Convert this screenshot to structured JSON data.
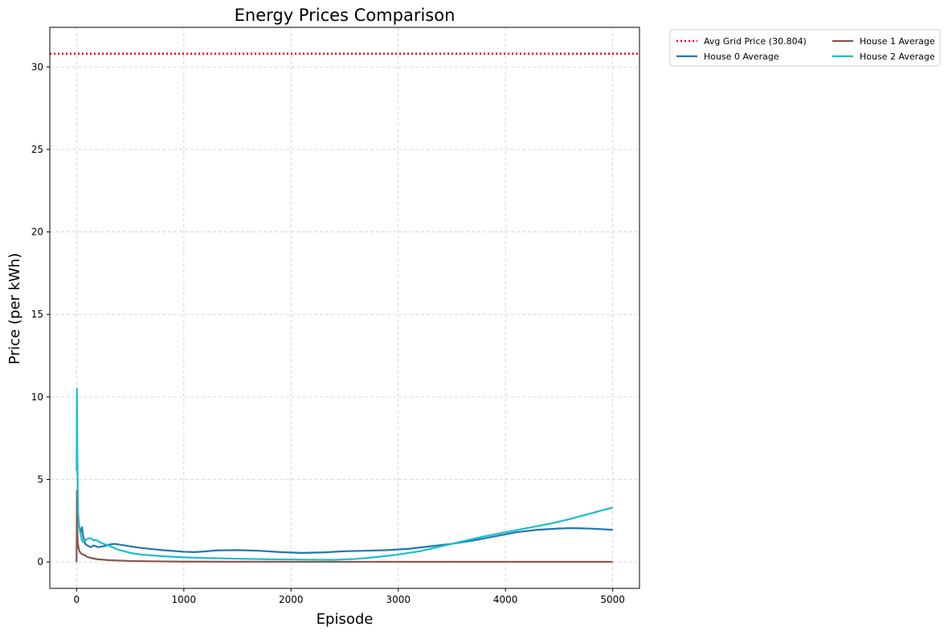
{
  "chart_data": {
    "type": "line",
    "title": "Energy Prices Comparison",
    "xlabel": "Episode",
    "ylabel": "Price (per kWh)",
    "xlim": [
      -250,
      5250
    ],
    "ylim": [
      -1.6,
      32.4
    ],
    "xticks": [
      0,
      1000,
      2000,
      3000,
      4000,
      5000
    ],
    "yticks": [
      0,
      5,
      10,
      15,
      20,
      25,
      30
    ],
    "grid": true,
    "legend_position": "outside top-right",
    "hline": {
      "name": "Avg Grid Price (30.804)",
      "value": 30.804,
      "color": "#ee0000",
      "style": "dotted"
    },
    "series": [
      {
        "name": "House 0 Average",
        "color": "#1f77b4",
        "x": [
          0,
          5,
          10,
          20,
          30,
          40,
          50,
          60,
          80,
          100,
          130,
          160,
          200,
          250,
          300,
          350,
          400,
          500,
          600,
          800,
          1000,
          1100,
          1200,
          1300,
          1500,
          1700,
          1900,
          2100,
          2300,
          2500,
          2700,
          2900,
          3100,
          3300,
          3500,
          3700,
          3900,
          4100,
          4300,
          4500,
          4600,
          4700,
          4800,
          5000
        ],
        "y": [
          0.0,
          3.6,
          2.9,
          2.3,
          2.0,
          1.8,
          2.1,
          1.6,
          1.1,
          1.0,
          0.9,
          1.0,
          0.9,
          0.95,
          1.05,
          1.1,
          1.05,
          0.95,
          0.85,
          0.72,
          0.62,
          0.6,
          0.64,
          0.7,
          0.72,
          0.68,
          0.6,
          0.55,
          0.58,
          0.65,
          0.68,
          0.72,
          0.8,
          0.95,
          1.1,
          1.3,
          1.55,
          1.8,
          1.95,
          2.03,
          2.05,
          2.04,
          2.02,
          1.95
        ]
      },
      {
        "name": "House 1 Average",
        "color": "#8c564b",
        "x": [
          0,
          3,
          6,
          10,
          20,
          30,
          50,
          80,
          100,
          150,
          200,
          300,
          500,
          700,
          1000,
          2000,
          3000,
          4000,
          5000
        ],
        "y": [
          0.0,
          4.3,
          2.1,
          1.2,
          0.8,
          0.6,
          0.48,
          0.4,
          0.3,
          0.22,
          0.16,
          0.11,
          0.06,
          0.04,
          0.02,
          0.01,
          0.01,
          0.01,
          0.01
        ]
      },
      {
        "name": "House 2 Average",
        "color": "#17becf",
        "x": [
          0,
          3,
          6,
          10,
          15,
          20,
          30,
          40,
          50,
          60,
          80,
          100,
          120,
          140,
          160,
          180,
          200,
          250,
          300,
          350,
          400,
          500,
          600,
          800,
          1000,
          1200,
          1500,
          1800,
          2100,
          2400,
          2600,
          2800,
          3000,
          3200,
          3400,
          3600,
          3800,
          4000,
          4200,
          4400,
          4600,
          4800,
          5000
        ],
        "y": [
          5.5,
          10.5,
          7.5,
          4.8,
          3.0,
          2.4,
          1.9,
          1.6,
          1.3,
          1.2,
          1.3,
          1.4,
          1.45,
          1.4,
          1.3,
          1.35,
          1.25,
          1.1,
          1.0,
          0.85,
          0.72,
          0.55,
          0.45,
          0.35,
          0.28,
          0.24,
          0.2,
          0.16,
          0.14,
          0.13,
          0.18,
          0.3,
          0.45,
          0.65,
          0.95,
          1.25,
          1.55,
          1.8,
          2.05,
          2.3,
          2.6,
          2.95,
          3.3
        ]
      }
    ]
  }
}
